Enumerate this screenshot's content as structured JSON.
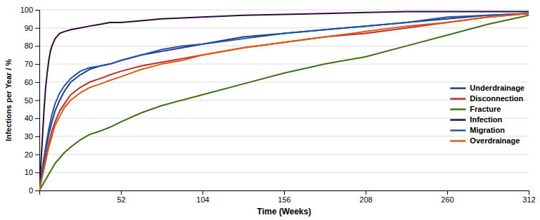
{
  "chart_data": {
    "type": "line",
    "xlabel": "Time (Weeks)",
    "ylabel": "Infections per Year / %",
    "xlim": [
      0,
      312
    ],
    "ylim": [
      0,
      100
    ],
    "xticks": [
      52,
      104,
      156,
      208,
      260,
      312
    ],
    "yticks": [
      0,
      10,
      20,
      30,
      40,
      50,
      60,
      70,
      80,
      90,
      100
    ],
    "grid": true,
    "legend": "right",
    "series": [
      {
        "name": "Underdrainage",
        "color": "#1F3A8F",
        "x": [
          0,
          2,
          4,
          6,
          8,
          10,
          13,
          16,
          20,
          26,
          32,
          39,
          45,
          52,
          65,
          78,
          91,
          104,
          130,
          156,
          182,
          208,
          234,
          260,
          286,
          312
        ],
        "values": [
          0,
          12,
          22,
          31,
          38,
          44,
          50,
          55,
          60,
          64,
          67,
          69,
          70,
          72,
          75,
          77,
          79,
          81,
          85,
          87,
          89,
          91,
          93,
          95,
          97,
          98
        ]
      },
      {
        "name": "Disconnection",
        "color": "#C0282D",
        "x": [
          0,
          2,
          4,
          6,
          8,
          10,
          13,
          16,
          20,
          26,
          32,
          39,
          45,
          52,
          65,
          78,
          91,
          104,
          130,
          156,
          182,
          208,
          234,
          260,
          286,
          312
        ],
        "values": [
          0,
          10,
          18,
          26,
          33,
          38,
          44,
          48,
          53,
          57,
          60,
          62,
          64,
          66,
          69,
          71,
          73,
          75,
          79,
          82,
          85,
          87,
          90,
          93,
          96,
          98
        ]
      },
      {
        "name": "Fracture",
        "color": "#3A7010",
        "x": [
          0,
          2,
          4,
          6,
          8,
          10,
          13,
          16,
          20,
          26,
          32,
          39,
          45,
          52,
          65,
          78,
          91,
          104,
          130,
          156,
          182,
          208,
          234,
          260,
          286,
          312
        ],
        "values": [
          0,
          3,
          6,
          9,
          12,
          15,
          18,
          21,
          24,
          28,
          31,
          33,
          35,
          38,
          43,
          47,
          50,
          53,
          59,
          65,
          70,
          74,
          80,
          86,
          92,
          97
        ]
      },
      {
        "name": "Infection",
        "color": "#2E0A3C",
        "x": [
          0,
          1,
          2,
          3,
          4,
          5,
          6,
          7,
          8,
          10,
          13,
          16,
          20,
          26,
          32,
          39,
          45,
          52,
          65,
          78,
          91,
          104,
          130,
          156,
          182,
          208,
          234,
          260,
          286,
          312
        ],
        "values": [
          0,
          15,
          30,
          45,
          57,
          65,
          72,
          77,
          80,
          84,
          87,
          88,
          89,
          90,
          91,
          92,
          93,
          93,
          94,
          95,
          95.5,
          96,
          97,
          97.5,
          98,
          98.5,
          99,
          99,
          99,
          99
        ]
      },
      {
        "name": "Migration",
        "color": "#2255A4",
        "x": [
          0,
          2,
          4,
          6,
          8,
          10,
          13,
          16,
          20,
          26,
          32,
          39,
          45,
          52,
          65,
          78,
          91,
          104,
          130,
          156,
          182,
          208,
          234,
          260,
          286,
          312
        ],
        "values": [
          0,
          13,
          24,
          34,
          42,
          48,
          54,
          58,
          62,
          66,
          68,
          69,
          70,
          72,
          75,
          78,
          80,
          81,
          84,
          87,
          89,
          91,
          93,
          96,
          97,
          98
        ]
      },
      {
        "name": "Overdrainage",
        "color": "#E05A10",
        "x": [
          0,
          2,
          4,
          6,
          8,
          10,
          13,
          16,
          20,
          26,
          32,
          39,
          45,
          52,
          65,
          78,
          91,
          104,
          130,
          156,
          182,
          208,
          234,
          260,
          286,
          312
        ],
        "values": [
          0,
          8,
          16,
          24,
          30,
          36,
          41,
          46,
          50,
          54,
          57,
          59,
          61,
          63,
          67,
          70,
          72,
          75,
          79,
          82,
          85,
          88,
          91,
          93,
          96,
          98
        ]
      }
    ]
  }
}
